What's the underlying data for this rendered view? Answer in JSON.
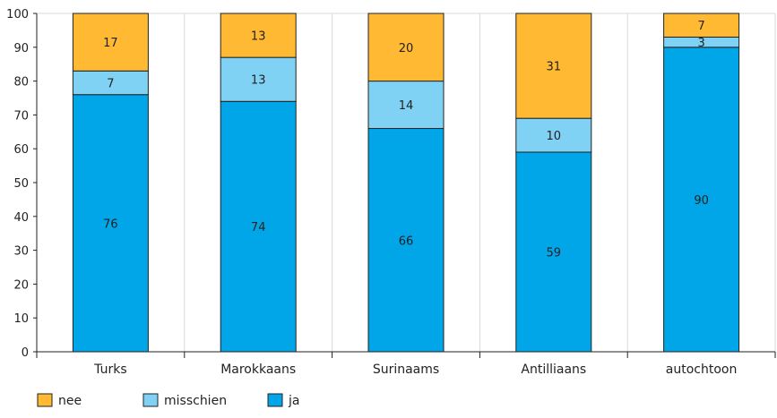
{
  "chart_data": {
    "type": "bar",
    "stacked": true,
    "categories": [
      "Turks",
      "Marokkaans",
      "Surinaams",
      "Antilliaans",
      "autochtoon"
    ],
    "series": [
      {
        "name": "ja",
        "values": [
          76,
          74,
          66,
          59,
          90
        ],
        "color": "#00a6e8"
      },
      {
        "name": "misschien",
        "values": [
          7,
          13,
          14,
          10,
          3
        ],
        "color": "#80d2f4"
      },
      {
        "name": "nee",
        "values": [
          17,
          13,
          20,
          31,
          7
        ],
        "color": "#ffb933"
      }
    ],
    "yticks": [
      "0",
      "10",
      "20",
      "30",
      "40",
      "50",
      "60",
      "70",
      "80",
      "90",
      "100"
    ],
    "ylim": [
      0,
      100
    ],
    "grid": "vertical-separators",
    "legend": "bottom-left",
    "legend_order": [
      "nee",
      "misschien",
      "ja"
    ]
  }
}
